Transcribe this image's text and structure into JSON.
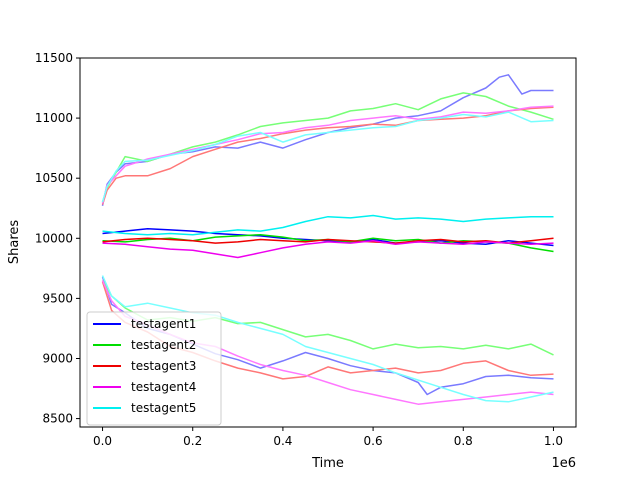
{
  "chart_data": {
    "type": "line",
    "title": "",
    "xlabel": "Time",
    "ylabel": "Shares",
    "x_offset_label": "1e6",
    "xlim": [
      -0.05,
      1.05
    ],
    "ylim": [
      8430,
      11500
    ],
    "x_ticks": [
      0.0,
      0.2,
      0.4,
      0.6,
      0.8,
      1.0
    ],
    "x_tick_labels": [
      "0.0",
      "0.2",
      "0.4",
      "0.6",
      "0.8",
      "1.0"
    ],
    "y_ticks": [
      8500,
      9000,
      9500,
      10000,
      10500,
      11000,
      11500
    ],
    "y_tick_labels": [
      "8500",
      "9000",
      "9500",
      "10000",
      "10500",
      "11000",
      "11500"
    ],
    "grid": false,
    "legend_position": "lower-left",
    "series": [
      {
        "name": "testagent1",
        "color": "#0000ff",
        "x": [
          0.0,
          0.05,
          0.1,
          0.15,
          0.2,
          0.25,
          0.3,
          0.35,
          0.4,
          0.45,
          0.5,
          0.55,
          0.6,
          0.65,
          0.7,
          0.75,
          0.8,
          0.85,
          0.9,
          0.95,
          1.0
        ],
        "values": [
          10040,
          10060,
          10080,
          10070,
          10060,
          10040,
          10030,
          10020,
          10000,
          9990,
          9980,
          9970,
          9990,
          9960,
          9970,
          9980,
          9960,
          9950,
          9980,
          9960,
          9940
        ]
      },
      {
        "name": "testagent2",
        "color": "#00dd00",
        "x": [
          0.0,
          0.05,
          0.1,
          0.15,
          0.2,
          0.25,
          0.3,
          0.35,
          0.4,
          0.45,
          0.5,
          0.55,
          0.6,
          0.65,
          0.7,
          0.75,
          0.8,
          0.85,
          0.9,
          0.95,
          1.0
        ],
        "values": [
          9980,
          9970,
          9990,
          10000,
          9980,
          10010,
          10020,
          10030,
          10010,
          9980,
          9990,
          9970,
          10000,
          9980,
          9990,
          9960,
          9980,
          9970,
          9960,
          9920,
          9890
        ]
      },
      {
        "name": "testagent3",
        "color": "#ee0000",
        "x": [
          0.0,
          0.05,
          0.1,
          0.15,
          0.2,
          0.25,
          0.3,
          0.35,
          0.4,
          0.45,
          0.5,
          0.55,
          0.6,
          0.65,
          0.7,
          0.75,
          0.8,
          0.85,
          0.9,
          0.95,
          1.0
        ],
        "values": [
          9970,
          9990,
          10000,
          9990,
          9980,
          9960,
          9970,
          9990,
          9980,
          9970,
          9990,
          9980,
          9970,
          9960,
          9980,
          9990,
          9970,
          9980,
          9960,
          9980,
          10000
        ]
      },
      {
        "name": "testagent4",
        "color": "#ee00ee",
        "x": [
          0.0,
          0.05,
          0.1,
          0.15,
          0.2,
          0.25,
          0.3,
          0.35,
          0.4,
          0.45,
          0.5,
          0.55,
          0.6,
          0.65,
          0.7,
          0.75,
          0.8,
          0.85,
          0.9,
          0.95,
          1.0
        ],
        "values": [
          9960,
          9950,
          9930,
          9910,
          9900,
          9870,
          9840,
          9880,
          9920,
          9950,
          9970,
          9960,
          9980,
          9950,
          9970,
          9960,
          9950,
          9970,
          9960,
          9950,
          9960
        ]
      },
      {
        "name": "testagent5",
        "color": "#00f0f0",
        "x": [
          0.0,
          0.05,
          0.1,
          0.15,
          0.2,
          0.25,
          0.3,
          0.35,
          0.4,
          0.45,
          0.5,
          0.55,
          0.6,
          0.65,
          0.7,
          0.75,
          0.8,
          0.85,
          0.9,
          0.95,
          1.0
        ],
        "values": [
          10060,
          10040,
          10030,
          10040,
          10030,
          10050,
          10070,
          10060,
          10090,
          10140,
          10180,
          10170,
          10190,
          10160,
          10170,
          10160,
          10140,
          10160,
          10170,
          10180,
          10180
        ]
      },
      {
        "name": "",
        "color": "#7a7aff",
        "x": [
          0.0,
          0.01,
          0.03,
          0.05,
          0.1,
          0.15,
          0.2,
          0.25,
          0.3,
          0.35,
          0.4,
          0.45,
          0.5,
          0.55,
          0.6,
          0.65,
          0.7,
          0.75,
          0.8,
          0.85,
          0.88,
          0.9,
          0.93,
          0.95,
          1.0
        ],
        "values": [
          10270,
          10450,
          10550,
          10620,
          10640,
          10700,
          10720,
          10760,
          10750,
          10800,
          10750,
          10820,
          10880,
          10920,
          10950,
          11000,
          11020,
          11060,
          11170,
          11250,
          11340,
          11360,
          11200,
          11230,
          11230
        ]
      },
      {
        "name": "",
        "color": "#77ff77",
        "x": [
          0.0,
          0.01,
          0.03,
          0.05,
          0.1,
          0.15,
          0.2,
          0.25,
          0.3,
          0.35,
          0.4,
          0.45,
          0.5,
          0.55,
          0.6,
          0.65,
          0.7,
          0.75,
          0.8,
          0.85,
          0.9,
          0.95,
          1.0
        ],
        "values": [
          10300,
          10420,
          10550,
          10680,
          10640,
          10700,
          10760,
          10800,
          10860,
          10930,
          10960,
          10980,
          11000,
          11060,
          11080,
          11120,
          11070,
          11160,
          11210,
          11180,
          11100,
          11050,
          10990
        ]
      },
      {
        "name": "",
        "color": "#ff7777",
        "x": [
          0.0,
          0.01,
          0.03,
          0.05,
          0.1,
          0.15,
          0.2,
          0.25,
          0.3,
          0.35,
          0.4,
          0.45,
          0.5,
          0.55,
          0.6,
          0.65,
          0.7,
          0.75,
          0.8,
          0.85,
          0.9,
          0.95,
          1.0
        ],
        "values": [
          10280,
          10400,
          10500,
          10520,
          10520,
          10580,
          10680,
          10740,
          10800,
          10830,
          10870,
          10900,
          10920,
          10930,
          10950,
          10940,
          10980,
          10990,
          11000,
          11020,
          11060,
          11080,
          11090
        ]
      },
      {
        "name": "",
        "color": "#ff77ff",
        "x": [
          0.0,
          0.01,
          0.03,
          0.05,
          0.1,
          0.15,
          0.2,
          0.25,
          0.3,
          0.35,
          0.4,
          0.45,
          0.5,
          0.55,
          0.6,
          0.65,
          0.7,
          0.75,
          0.8,
          0.85,
          0.9,
          0.95,
          1.0
        ],
        "values": [
          10290,
          10440,
          10520,
          10600,
          10660,
          10700,
          10740,
          10780,
          10820,
          10870,
          10880,
          10920,
          10940,
          10980,
          11000,
          11020,
          10990,
          11010,
          11050,
          11040,
          11060,
          11090,
          11100
        ]
      },
      {
        "name": "",
        "color": "#77ffff",
        "x": [
          0.0,
          0.01,
          0.03,
          0.05,
          0.1,
          0.15,
          0.2,
          0.25,
          0.3,
          0.35,
          0.4,
          0.45,
          0.5,
          0.55,
          0.6,
          0.65,
          0.7,
          0.75,
          0.8,
          0.85,
          0.9,
          0.95,
          1.0
        ],
        "values": [
          10300,
          10430,
          10560,
          10640,
          10650,
          10690,
          10730,
          10780,
          10850,
          10880,
          10800,
          10860,
          10880,
          10900,
          10920,
          10930,
          10980,
          11000,
          11030,
          11010,
          11050,
          10970,
          10980
        ]
      },
      {
        "name": "",
        "color": "#7a7aff",
        "x": [
          0.0,
          0.02,
          0.05,
          0.1,
          0.15,
          0.2,
          0.25,
          0.3,
          0.35,
          0.4,
          0.45,
          0.5,
          0.55,
          0.6,
          0.65,
          0.7,
          0.72,
          0.75,
          0.8,
          0.85,
          0.9,
          0.95,
          1.0
        ],
        "values": [
          9680,
          9450,
          9380,
          9250,
          9200,
          9120,
          9040,
          8990,
          8920,
          8980,
          9050,
          9000,
          8940,
          8900,
          8880,
          8800,
          8700,
          8760,
          8790,
          8850,
          8860,
          8840,
          8830
        ]
      },
      {
        "name": "",
        "color": "#77ff77",
        "x": [
          0.0,
          0.02,
          0.05,
          0.1,
          0.15,
          0.2,
          0.25,
          0.3,
          0.35,
          0.4,
          0.45,
          0.5,
          0.55,
          0.6,
          0.65,
          0.7,
          0.75,
          0.8,
          0.85,
          0.9,
          0.95,
          1.0
        ],
        "values": [
          9650,
          9520,
          9420,
          9320,
          9340,
          9310,
          9340,
          9290,
          9300,
          9240,
          9180,
          9200,
          9150,
          9080,
          9120,
          9090,
          9100,
          9080,
          9110,
          9080,
          9120,
          9030
        ]
      },
      {
        "name": "",
        "color": "#ff7777",
        "x": [
          0.0,
          0.02,
          0.05,
          0.1,
          0.15,
          0.2,
          0.25,
          0.3,
          0.35,
          0.4,
          0.45,
          0.5,
          0.55,
          0.6,
          0.65,
          0.7,
          0.75,
          0.8,
          0.85,
          0.9,
          0.95,
          1.0
        ],
        "values": [
          9640,
          9400,
          9300,
          9220,
          9100,
          9050,
          8980,
          8920,
          8880,
          8830,
          8850,
          8930,
          8880,
          8900,
          8920,
          8880,
          8900,
          8960,
          8980,
          8900,
          8860,
          8870
        ]
      },
      {
        "name": "",
        "color": "#ff77ff",
        "x": [
          0.0,
          0.02,
          0.05,
          0.1,
          0.15,
          0.2,
          0.25,
          0.3,
          0.35,
          0.4,
          0.45,
          0.5,
          0.55,
          0.6,
          0.65,
          0.7,
          0.75,
          0.8,
          0.85,
          0.9,
          0.95,
          1.0
        ],
        "values": [
          9650,
          9480,
          9350,
          9280,
          9200,
          9130,
          9100,
          9020,
          8950,
          8900,
          8860,
          8800,
          8740,
          8700,
          8660,
          8620,
          8640,
          8660,
          8680,
          8700,
          8720,
          8700
        ]
      },
      {
        "name": "",
        "color": "#77ffff",
        "x": [
          0.0,
          0.02,
          0.05,
          0.1,
          0.15,
          0.2,
          0.25,
          0.3,
          0.35,
          0.4,
          0.45,
          0.5,
          0.55,
          0.6,
          0.65,
          0.7,
          0.75,
          0.8,
          0.85,
          0.9,
          0.95,
          1.0
        ],
        "values": [
          9690,
          9520,
          9430,
          9460,
          9420,
          9380,
          9360,
          9300,
          9250,
          9200,
          9100,
          9050,
          9000,
          8950,
          8880,
          8820,
          8760,
          8700,
          8650,
          8640,
          8680,
          8720
        ]
      }
    ]
  }
}
